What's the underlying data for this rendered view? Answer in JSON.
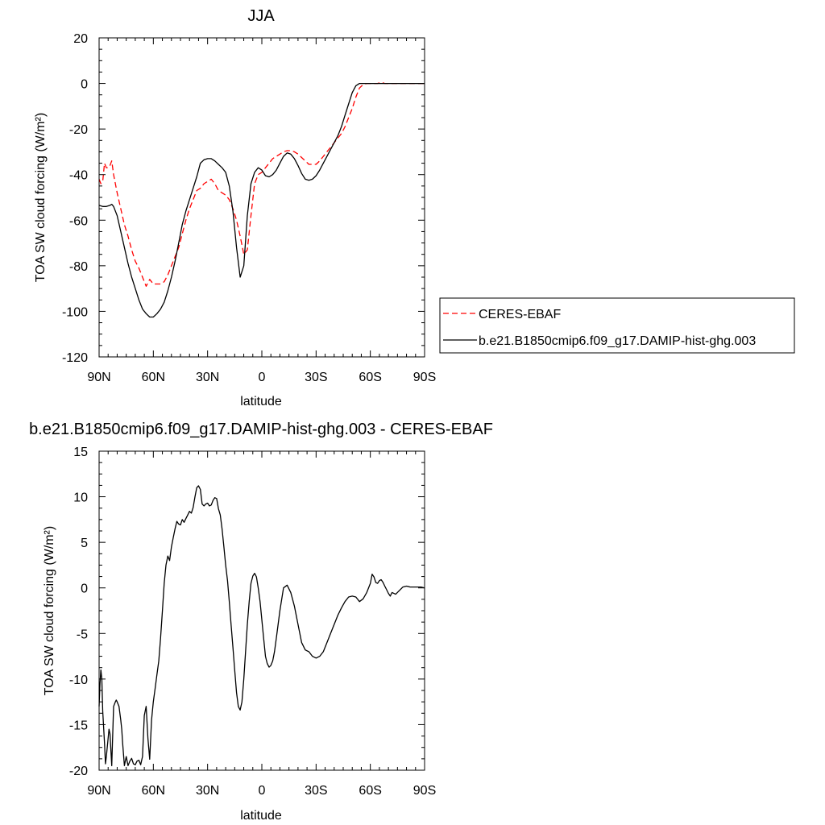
{
  "chart_data": [
    {
      "type": "line",
      "title": "JJA",
      "xlabel": "latitude",
      "ylabel": "TOA SW cloud forcing (W/m²)",
      "ylim": [
        -120,
        20
      ],
      "xlim": [
        90,
        -90
      ],
      "xticks": [
        90,
        60,
        30,
        0,
        -30,
        -60,
        -90
      ],
      "xtick_labels": [
        "90N",
        "60N",
        "30N",
        "0",
        "30S",
        "60S",
        "90S"
      ],
      "yticks": [
        20,
        0,
        -20,
        -40,
        -60,
        -80,
        -100,
        -120
      ],
      "ytick_labels": [
        "20",
        "0",
        "-20",
        "-40",
        "-60",
        "-80",
        "-100",
        "-120"
      ],
      "legend_position": "right",
      "series": [
        {
          "name": "CERES-EBAF",
          "color": "#ff0000",
          "style": "dashed",
          "x": [
            90,
            89,
            88,
            87,
            86,
            85,
            84,
            83,
            82,
            80,
            78,
            76,
            74,
            72,
            70,
            68,
            66,
            64,
            62,
            60,
            59,
            58,
            56,
            54,
            52,
            50,
            48,
            46,
            44,
            42,
            40,
            38,
            36,
            34,
            32,
            30,
            28,
            26,
            24,
            22,
            20,
            18,
            16,
            14,
            12,
            10,
            8,
            6,
            4,
            2,
            0,
            -2,
            -4,
            -6,
            -8,
            -10,
            -12,
            -14,
            -16,
            -18,
            -20,
            -22,
            -24,
            -26,
            -28,
            -30,
            -32,
            -34,
            -36,
            -38,
            -40,
            -42,
            -44,
            -46,
            -48,
            -50,
            -52,
            -54,
            -56,
            -58,
            -60,
            -62,
            -64,
            -66,
            -68,
            -70,
            -72,
            -74,
            -76,
            -78,
            -80,
            -82,
            -84,
            -86,
            -88,
            -90
          ],
          "values": [
            -42,
            -44,
            -43,
            -35,
            -37,
            -37,
            -36,
            -34,
            -40,
            -48,
            -55,
            -62,
            -67,
            -73,
            -78,
            -81,
            -85,
            -89,
            -86,
            -88,
            -88,
            -88,
            -88,
            -87,
            -84,
            -80,
            -76,
            -72,
            -66,
            -60,
            -55,
            -51,
            -47,
            -46,
            -44,
            -43,
            -42,
            -44,
            -47,
            -48,
            -49,
            -51,
            -55,
            -60,
            -67,
            -75,
            -73,
            -58,
            -44,
            -40,
            -39,
            -37,
            -35,
            -33,
            -32,
            -31,
            -30,
            -29.5,
            -29.5,
            -30,
            -31,
            -32.5,
            -34,
            -35.5,
            -35.5,
            -35.5,
            -34,
            -32,
            -30,
            -28,
            -26,
            -24,
            -22,
            -19,
            -15,
            -11,
            -6,
            -2,
            -0.5,
            0,
            0,
            0,
            0,
            0.5,
            0,
            0,
            0,
            0,
            0,
            0,
            0,
            0,
            0,
            0,
            0,
            0
          ]
        },
        {
          "name": "b.e21.B1850cmip6.f09_g17.DAMIP-hist-ghg.003",
          "color": "#000000",
          "style": "solid",
          "x": [
            90,
            88,
            86,
            84,
            83,
            82,
            80,
            78,
            76,
            74,
            72,
            70,
            68,
            66,
            64,
            62,
            61,
            60,
            58,
            56,
            54,
            52,
            50,
            48,
            46,
            44,
            42,
            40,
            38,
            36,
            34,
            32,
            30,
            28,
            26,
            24,
            22,
            20,
            18,
            16,
            14,
            12,
            10,
            8,
            6,
            4,
            2,
            0,
            -2,
            -4,
            -6,
            -8,
            -10,
            -12,
            -14,
            -16,
            -18,
            -20,
            -22,
            -24,
            -26,
            -28,
            -30,
            -32,
            -34,
            -36,
            -38,
            -40,
            -42,
            -44,
            -46,
            -48,
            -50,
            -52,
            -54,
            -56,
            -58,
            -60,
            -62,
            -64,
            -66,
            -68,
            -70,
            -72,
            -74,
            -76,
            -78,
            -80,
            -82,
            -84,
            -86,
            -88,
            -90
          ],
          "values": [
            -53.5,
            -54,
            -54,
            -53.5,
            -53,
            -54,
            -58,
            -65,
            -72,
            -79,
            -85,
            -90,
            -95,
            -99,
            -101,
            -102.5,
            -102.5,
            -102.5,
            -101,
            -99,
            -96,
            -91,
            -85,
            -78,
            -70,
            -62,
            -56,
            -51,
            -46,
            -41,
            -35,
            -33.5,
            -33,
            -33,
            -34,
            -35.5,
            -37,
            -39,
            -45,
            -56,
            -72,
            -85,
            -80,
            -58,
            -44,
            -39,
            -37,
            -38,
            -40.5,
            -41,
            -40,
            -38,
            -35,
            -32,
            -30.5,
            -31,
            -33,
            -36,
            -39.5,
            -42,
            -42.5,
            -42,
            -40.5,
            -38,
            -35,
            -32,
            -29,
            -26,
            -23,
            -19,
            -14,
            -9,
            -4,
            -1,
            0,
            0,
            0,
            0,
            0,
            0,
            0,
            0,
            0,
            0,
            0,
            0,
            0,
            0,
            0,
            0,
            0,
            0,
            0
          ]
        }
      ]
    },
    {
      "type": "line",
      "title": "b.e21.B1850cmip6.f09_g17.DAMIP-hist-ghg.003 - CERES-EBAF",
      "xlabel": "latitude",
      "ylabel": "TOA SW cloud forcing (W/m²)",
      "ylim": [
        -20,
        15
      ],
      "xlim": [
        90,
        -90
      ],
      "xticks": [
        90,
        60,
        30,
        0,
        -30,
        -60,
        -90
      ],
      "xtick_labels": [
        "90N",
        "60N",
        "30N",
        "0",
        "30S",
        "60S",
        "90S"
      ],
      "yticks": [
        15,
        10,
        5,
        0,
        -5,
        -10,
        -15,
        -20
      ],
      "ytick_labels": [
        "15",
        "10",
        "5",
        "0",
        "-5",
        "-10",
        "-15",
        "-20"
      ],
      "series": [
        {
          "color": "#000000",
          "style": "solid",
          "x": [
            90,
            89.5,
            89,
            88.5,
            88,
            87,
            86.5,
            86,
            85,
            84.5,
            84,
            83,
            82,
            81,
            80.5,
            80,
            79,
            78,
            77.5,
            77,
            76,
            75,
            74,
            73,
            72,
            71,
            70,
            69,
            68,
            67,
            66,
            65,
            64,
            63,
            62,
            61,
            60,
            59,
            58,
            57,
            56,
            55,
            54,
            53,
            52,
            51,
            50,
            49,
            48,
            47,
            46,
            45,
            44,
            43,
            42,
            41,
            40,
            39,
            38,
            37,
            36,
            35,
            34,
            33,
            32,
            31,
            30,
            29,
            28,
            27,
            26,
            25,
            24,
            23,
            22,
            21,
            20,
            19,
            18,
            17,
            16,
            15,
            14,
            13,
            12,
            11,
            10,
            9,
            8,
            7,
            6,
            5,
            4,
            3,
            2,
            1,
            0,
            -1,
            -2,
            -3,
            -4,
            -5,
            -6,
            -7,
            -8,
            -9,
            -10,
            -12,
            -14,
            -16,
            -18,
            -20,
            -22,
            -24,
            -26,
            -28,
            -30,
            -32,
            -34,
            -36,
            -38,
            -40,
            -42,
            -44,
            -46,
            -48,
            -50,
            -52,
            -54,
            -56,
            -58,
            -60,
            -61,
            -62,
            -63,
            -64,
            -65,
            -66,
            -67,
            -68,
            -69,
            -70,
            -71,
            -72,
            -74,
            -76,
            -78,
            -80,
            -82,
            -84,
            -86,
            -88,
            -90
          ],
          "values": [
            -13,
            -10.5,
            -9,
            -10,
            -13.5,
            -17,
            -19.3,
            -18.5,
            -16.5,
            -15.5,
            -16,
            -19.5,
            -13,
            -12.5,
            -12.3,
            -12.5,
            -13,
            -14.5,
            -15.5,
            -17,
            -19.5,
            -18.5,
            -19.5,
            -19,
            -18.7,
            -19.3,
            -19.4,
            -19,
            -18.9,
            -19.4,
            -18.5,
            -14,
            -13,
            -16.5,
            -18.8,
            -14.5,
            -12.5,
            -11,
            -9.5,
            -8,
            -5.5,
            -2.5,
            0.5,
            2.5,
            3.5,
            3,
            4.5,
            5.5,
            6.5,
            7.3,
            7,
            6.9,
            7.5,
            7.2,
            7.6,
            8,
            8.4,
            8.2,
            8.8,
            10,
            11,
            11.2,
            10.8,
            9.2,
            9,
            9.2,
            9.3,
            9,
            9.1,
            9.6,
            9.9,
            9.8,
            8.7,
            8,
            6.5,
            4.5,
            2.5,
            0.8,
            -1.5,
            -4,
            -6.5,
            -9,
            -11.5,
            -13,
            -13.4,
            -12.5,
            -10,
            -7,
            -4,
            -1.5,
            0.5,
            1.3,
            1.6,
            1.2,
            0,
            -1.5,
            -3.5,
            -5.5,
            -7.5,
            -8.3,
            -8.7,
            -8.5,
            -8,
            -7,
            -5.5,
            -4,
            -2.5,
            0,
            0.3,
            -0.5,
            -2,
            -4,
            -6,
            -6.8,
            -7,
            -7.5,
            -7.7,
            -7.5,
            -7,
            -6,
            -5,
            -4,
            -3,
            -2.2,
            -1.5,
            -1,
            -0.9,
            -1,
            -1.5,
            -1.2,
            -0.5,
            0.5,
            1.5,
            1.2,
            0.6,
            0.5,
            0.8,
            0.9,
            0.6,
            0.2,
            -0.2,
            -0.6,
            -0.9,
            -0.5,
            -0.7,
            -0.3,
            0.1,
            0.2,
            0.1,
            0.1,
            0.1,
            0.1,
            0
          ]
        }
      ]
    }
  ]
}
